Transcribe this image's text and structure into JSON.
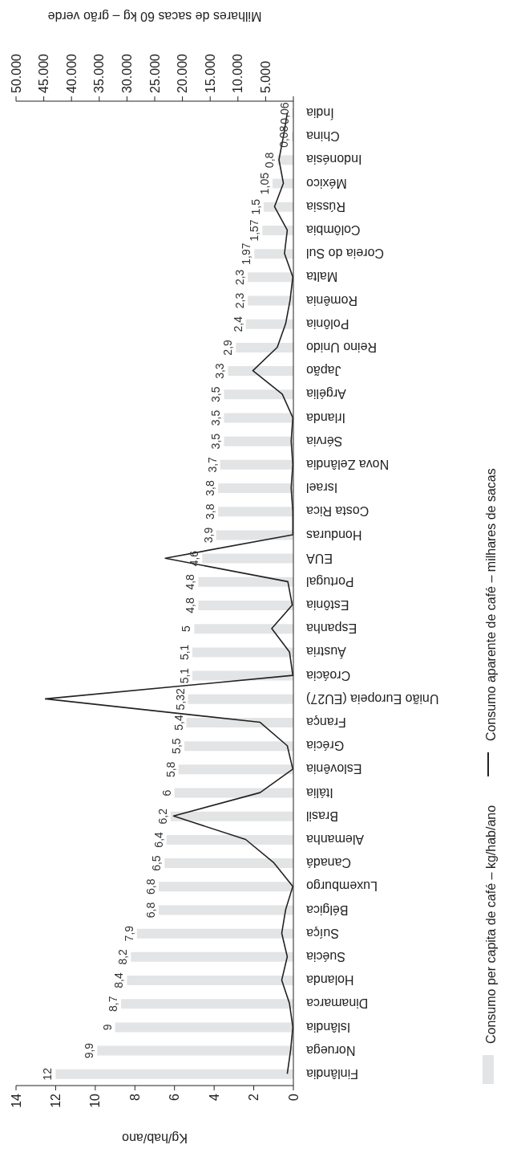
{
  "chart_data": {
    "type": "bar",
    "orientation": "horizontal",
    "xlabel": "Kg/hab/ano",
    "x2label": "Milhares de sacas 60 kg – grão verde",
    "categories": [
      "Índia",
      "China",
      "Indonésia",
      "México",
      "Rússia",
      "Colômbia",
      "Coreia do Sul",
      "Malta",
      "Romênia",
      "Polônia",
      "Reino Unido",
      "Japão",
      "Argélia",
      "Irlanda",
      "Sérvia",
      "Nova Zelândia",
      "Israel",
      "Costa Rica",
      "Honduras",
      "EUA",
      "Portugal",
      "Estônia",
      "Espanha",
      "Áustria",
      "Croácia",
      "União Europeia (EU27)",
      "França",
      "Grécia",
      "Eslovênia",
      "Itália",
      "Brasil",
      "Alemanha",
      "Canadá",
      "Luxemburgo",
      "Bélgica",
      "Suíça",
      "Suécia",
      "Holanda",
      "Dinamarca",
      "Islândia",
      "Noruega",
      "Finlândia"
    ],
    "series": [
      {
        "name": "Consumo per capita de café – kg/hab/ano",
        "color": "#e3e4e5",
        "values": [
          0.06,
          0.08,
          0.8,
          1.05,
          1.5,
          1.57,
          1.97,
          2.3,
          2.3,
          2.4,
          2.9,
          3.3,
          3.5,
          3.5,
          3.5,
          3.7,
          3.8,
          3.8,
          3.9,
          4.6,
          4.8,
          4.8,
          5,
          5.1,
          5.1,
          5.32,
          5.4,
          5.5,
          5.8,
          6,
          6.2,
          6.4,
          6.5,
          6.8,
          6.8,
          7.9,
          8.2,
          8.4,
          8.7,
          9,
          9.9,
          12
        ],
        "value_labels": [
          "0,06",
          "0,08",
          "0,8",
          "1,05",
          "1,5",
          "1,57",
          "1,97",
          "2,3",
          "2,3",
          "2,4",
          "2,9",
          "3,3",
          "3,5",
          "3,5",
          "3,5",
          "3,7",
          "3,8",
          "3,8",
          "3,9",
          "4,6",
          "4,8",
          "4,8",
          "5",
          "5,1",
          "5,1",
          "5,32",
          "5,4",
          "5,5",
          "5,8",
          "6",
          "6,2",
          "6,4",
          "6,5",
          "6,8",
          "6,8",
          "7,9",
          "8,2",
          "8,4",
          "8,7",
          "9",
          "9,9",
          "12"
        ]
      },
      {
        "type": "line",
        "axis": "x2",
        "name": "Consumo aparente de café – milhares de sacas",
        "color": "#222222",
        "values": [
          1100,
          1800,
          2600,
          1800,
          3400,
          1100,
          1600,
          100,
          600,
          1400,
          2900,
          7300,
          2000,
          100,
          400,
          100,
          400,
          100,
          100,
          23100,
          1000,
          200,
          3900,
          700,
          100,
          44700,
          6000,
          1100,
          100,
          6000,
          21600,
          8600,
          3500,
          100,
          1400,
          2100,
          1100,
          2100,
          700,
          100,
          500,
          1100
        ]
      }
    ],
    "xlim": [
      14,
      0
    ],
    "xticks": [
      0,
      2,
      4,
      6,
      8,
      10,
      12,
      14
    ],
    "x2lim": [
      50000,
      0
    ],
    "x2ticks": [
      {
        "value": 0,
        "label": null
      },
      {
        "value": 5000,
        "label": "5.000"
      },
      {
        "value": 10000,
        "label": "10.000"
      },
      {
        "value": 15000,
        "label": "15.000"
      },
      {
        "value": 20000,
        "label": "20.000"
      },
      {
        "value": 25000,
        "label": "25.000"
      },
      {
        "value": 30000,
        "label": "30.000"
      },
      {
        "value": 35000,
        "label": "35.000"
      },
      {
        "value": 40000,
        "label": "40.000"
      },
      {
        "value": 45000,
        "label": "45.000"
      },
      {
        "value": 50000,
        "label": "50.000"
      }
    ],
    "legend": "right"
  }
}
